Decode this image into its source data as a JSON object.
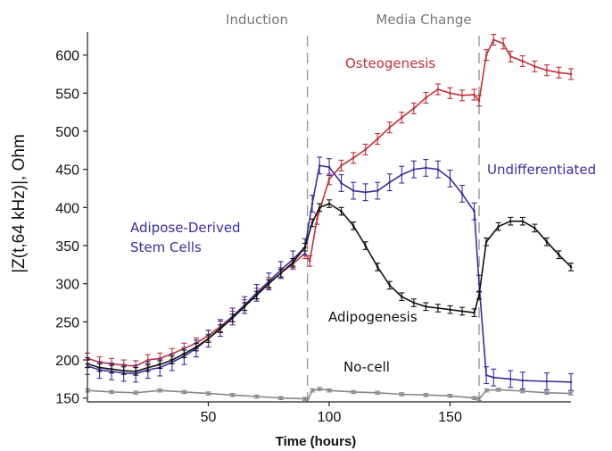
{
  "chart_data": {
    "type": "line",
    "xlabel": "Time (hours)",
    "ylabel": "|Z(t,64 kHz)|, Ohm",
    "xlim": [
      0,
      200
    ],
    "ylim": [
      145,
      630
    ],
    "x_ticks": [
      "50",
      "100",
      "150"
    ],
    "y_ticks": [
      "150",
      "200",
      "250",
      "300",
      "350",
      "400",
      "450",
      "500",
      "550",
      "600"
    ],
    "x_tick_values": [
      50,
      100,
      150
    ],
    "y_tick_values": [
      150,
      200,
      250,
      300,
      350,
      400,
      450,
      500,
      550,
      600
    ],
    "markers": [
      {
        "label": "Induction",
        "x": 91
      },
      {
        "label": "Media Change",
        "x": 162
      }
    ],
    "annotations": [
      {
        "text": "Osteogenesis",
        "color": "#c0303a"
      },
      {
        "text": "Undifferentiated",
        "color": "#3a2fa0"
      },
      {
        "text": "Adipose-Derived",
        "color": "#3a2fa0"
      },
      {
        "text": "Stem Cells",
        "color": "#3a2fa0"
      },
      {
        "text": "Adipogenesis",
        "color": "#111111"
      },
      {
        "text": "No-cell",
        "color": "#111111"
      }
    ],
    "series": [
      {
        "color": "#c0303a",
        "x": [
          0,
          5,
          10,
          15,
          20,
          25,
          30,
          35,
          40,
          45,
          50,
          55,
          60,
          65,
          70,
          75,
          80,
          85,
          90,
          92,
          95,
          100,
          105,
          110,
          115,
          120,
          125,
          130,
          135,
          140,
          145,
          150,
          155,
          160,
          162,
          165,
          168,
          172,
          175,
          180,
          185,
          190,
          195,
          200
        ],
        "y": [
          202,
          197,
          195,
          193,
          192,
          200,
          202,
          208,
          215,
          222,
          232,
          244,
          257,
          272,
          287,
          301,
          314,
          326,
          340,
          330,
          385,
          437,
          455,
          465,
          476,
          490,
          505,
          518,
          530,
          544,
          555,
          550,
          547,
          548,
          540,
          600,
          620,
          615,
          598,
          592,
          585,
          580,
          577,
          575
        ],
        "err": 7
      },
      {
        "color": "#3a2fa0",
        "x": [
          0,
          5,
          10,
          15,
          20,
          25,
          30,
          35,
          40,
          45,
          50,
          55,
          60,
          65,
          70,
          75,
          80,
          85,
          90,
          93,
          96,
          100,
          105,
          110,
          115,
          120,
          125,
          130,
          135,
          140,
          145,
          150,
          155,
          160,
          162,
          165,
          168,
          175,
          180,
          190,
          200
        ],
        "y": [
          192,
          187,
          185,
          183,
          182,
          187,
          190,
          197,
          205,
          215,
          228,
          242,
          257,
          272,
          288,
          303,
          318,
          332,
          348,
          405,
          455,
          453,
          432,
          422,
          420,
          422,
          433,
          443,
          450,
          452,
          450,
          438,
          418,
          395,
          300,
          180,
          177,
          175,
          173,
          172,
          171
        ],
        "err": 11
      },
      {
        "color": "#111111",
        "x": [
          0,
          5,
          10,
          15,
          20,
          25,
          30,
          35,
          40,
          45,
          50,
          55,
          60,
          65,
          70,
          75,
          80,
          85,
          90,
          93,
          96,
          100,
          105,
          110,
          115,
          120,
          125,
          130,
          135,
          140,
          145,
          150,
          155,
          160,
          162,
          165,
          170,
          175,
          180,
          185,
          190,
          195,
          200
        ],
        "y": [
          195,
          190,
          188,
          186,
          185,
          190,
          194,
          200,
          208,
          217,
          228,
          241,
          255,
          270,
          285,
          300,
          314,
          328,
          348,
          380,
          400,
          405,
          395,
          376,
          350,
          322,
          298,
          283,
          275,
          270,
          268,
          266,
          264,
          262,
          285,
          355,
          375,
          382,
          382,
          373,
          355,
          338,
          322
        ],
        "err": 5
      },
      {
        "color": "#888888",
        "x": [
          0,
          10,
          20,
          30,
          40,
          50,
          60,
          70,
          80,
          90,
          91,
          93,
          96,
          100,
          110,
          120,
          130,
          140,
          150,
          160,
          162,
          165,
          170,
          180,
          190,
          200
        ],
        "y": [
          160,
          158,
          157,
          160,
          158,
          156,
          154,
          152,
          150,
          149,
          147,
          160,
          162,
          160,
          158,
          157,
          155,
          154,
          153,
          150,
          149,
          160,
          161,
          159,
          157,
          156
        ],
        "err": 2
      }
    ]
  }
}
